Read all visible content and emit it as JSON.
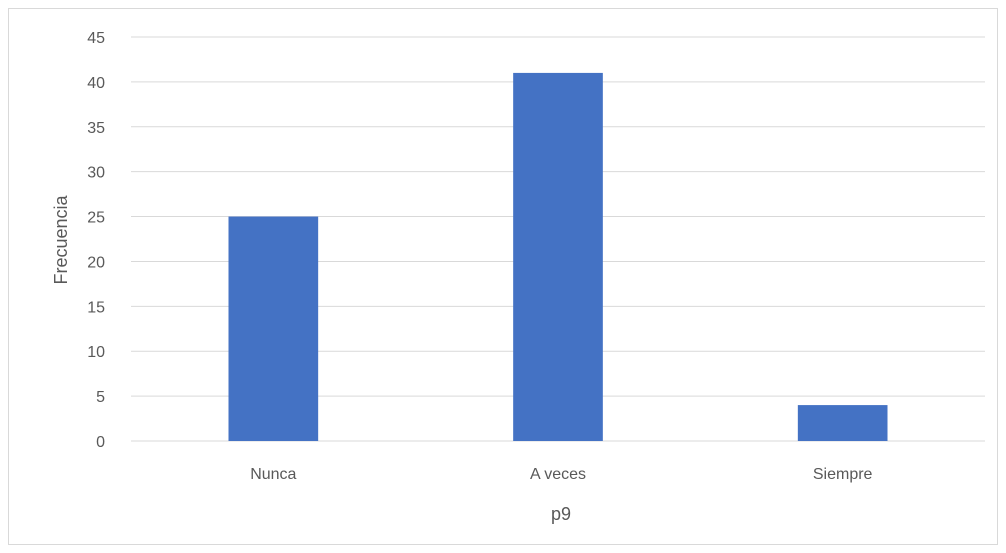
{
  "chart_data": {
    "type": "bar",
    "title": "",
    "xlabel": "p9",
    "ylabel": "Frecuencia",
    "categories": [
      "Nunca",
      "A veces",
      "Siempre"
    ],
    "values": [
      25,
      41,
      4
    ],
    "ylim": [
      0,
      45
    ],
    "yticks": [
      "0",
      "5",
      "10",
      "15",
      "20",
      "25",
      "30",
      "35",
      "40",
      "45"
    ],
    "grid": true,
    "legend": "none",
    "bar_color": "#4472C4",
    "gridline_color": "#d9d9d9"
  }
}
